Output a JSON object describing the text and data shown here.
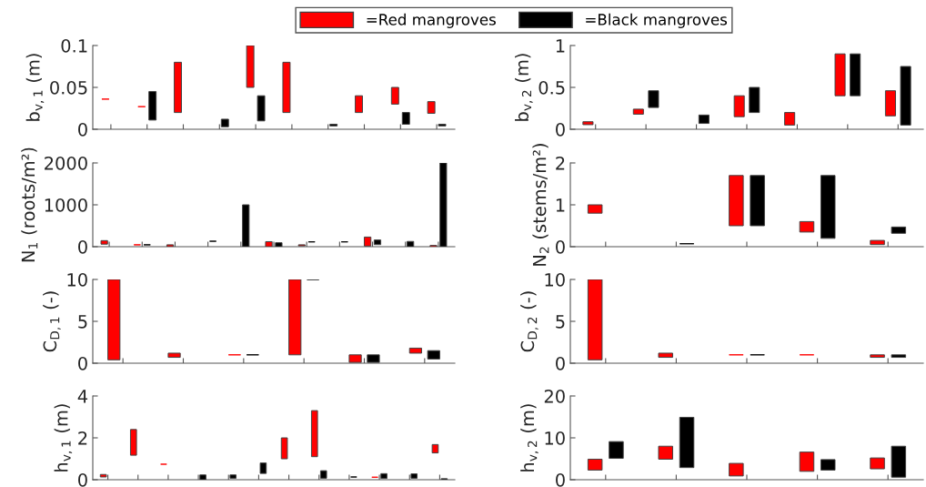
{
  "chart_data": [
    {
      "type": "bar",
      "ylabel": "b$_{v,1}$ (m)",
      "categories": [
        null,
        null,
        null,
        null,
        null,
        null,
        null,
        null,
        null,
        null
      ],
      "ylim": [
        0,
        0.1
      ],
      "yticks": [
        0,
        0.05,
        0.1
      ],
      "legend": "top",
      "series": [
        {
          "name": "=Red mangroves",
          "color": "#ff0000",
          "base": [
            0.036,
            0.027,
            0.02,
            null,
            0.05,
            0.02,
            null,
            0.02,
            0.03,
            0.019
          ],
          "values": [
            0,
            0,
            0.06,
            null,
            0.05,
            0.06,
            null,
            0.02,
            0.02,
            0.014
          ]
        },
        {
          "name": "=Black mangroves",
          "color": "#000000",
          "base": [
            null,
            0.011,
            null,
            0.003,
            0.01,
            null,
            0.004,
            null,
            0.006,
            0.004
          ],
          "values": [
            null,
            0.034,
            null,
            0.009,
            0.03,
            null,
            0.002,
            null,
            0.014,
            0.002
          ]
        }
      ]
    },
    {
      "type": "bar",
      "ylabel": "b$_{v,2}$ (m)",
      "categories": [
        null,
        null,
        null,
        null,
        null,
        null,
        null
      ],
      "ylim": [
        0,
        1
      ],
      "yticks": [
        0,
        0.5,
        1
      ],
      "series": [
        {
          "color": "#ff0000",
          "base": [
            0.055,
            0.18,
            null,
            0.15,
            0.05,
            0.4,
            0.16
          ],
          "values": [
            0.035,
            0.06,
            null,
            0.25,
            0.15,
            0.5,
            0.3
          ]
        },
        {
          "color": "#000000",
          "base": [
            null,
            0.26,
            0.07,
            0.2,
            null,
            0.4,
            0.05
          ],
          "values": [
            null,
            0.2,
            0.1,
            0.3,
            null,
            0.5,
            0.7
          ]
        }
      ]
    },
    {
      "type": "bar",
      "ylabel": "N$_{1}$ (roots/m²)",
      "categories": [
        null,
        null,
        null,
        null,
        null,
        null,
        null,
        null,
        null,
        null,
        null
      ],
      "ylim": [
        0,
        2000
      ],
      "yticks": [
        0,
        1000,
        2000
      ],
      "series": [
        {
          "color": "#ff0000",
          "base": [
            60,
            45,
            0,
            null,
            null,
            0,
            20,
            null,
            15,
            null,
            0
          ],
          "values": [
            85,
            0,
            45,
            null,
            null,
            120,
            25,
            null,
            215,
            null,
            30
          ]
        },
        {
          "color": "#000000",
          "base": [
            null,
            45,
            null,
            130,
            0,
            0,
            115,
            115,
            50,
            0,
            0
          ],
          "values": [
            null,
            0,
            null,
            0,
            1000,
            95,
            0,
            0,
            110,
            125,
            2000
          ]
        }
      ]
    },
    {
      "type": "bar",
      "ylabel": "N$_{2}$ (stems/m²)",
      "categories": [
        null,
        null,
        null,
        null,
        null
      ],
      "ylim": [
        0,
        2
      ],
      "yticks": [
        0,
        1,
        2
      ],
      "series": [
        {
          "color": "#ff0000",
          "base": [
            0.8,
            null,
            0.5,
            0.35,
            0.05
          ],
          "values": [
            0.2,
            null,
            1.2,
            0.25,
            0.1
          ]
        },
        {
          "color": "#000000",
          "base": [
            null,
            0.07,
            0.5,
            0.2,
            0.32
          ],
          "values": [
            null,
            0,
            1.2,
            1.5,
            0.15
          ]
        }
      ]
    },
    {
      "type": "bar",
      "ylabel": "C$_{D,1}$ (-)",
      "categories": [
        null,
        null,
        null,
        null,
        null,
        null
      ],
      "ylim": [
        0,
        10
      ],
      "yticks": [
        0,
        5,
        10
      ],
      "series": [
        {
          "color": "#ff0000",
          "base": [
            0.4,
            0.7,
            1,
            1,
            0.1,
            1.2
          ],
          "values": [
            9.6,
            0.5,
            0,
            9,
            0.9,
            0.6
          ]
        },
        {
          "color": "#000000",
          "base": [
            null,
            null,
            1,
            10,
            0.1,
            0.5
          ],
          "values": [
            null,
            null,
            0,
            0,
            0.9,
            1.0
          ]
        }
      ]
    },
    {
      "type": "bar",
      "ylabel": "C$_{D,2}$ (-)",
      "categories": [
        null,
        null,
        null,
        null,
        null
      ],
      "ylim": [
        0,
        10
      ],
      "yticks": [
        0,
        5,
        10
      ],
      "series": [
        {
          "color": "#ff0000",
          "base": [
            0.4,
            0.7,
            1,
            1,
            0.7
          ],
          "values": [
            9.6,
            0.5,
            0,
            0,
            0.3
          ]
        },
        {
          "color": "#000000",
          "base": [
            null,
            null,
            1,
            null,
            0.7
          ],
          "values": [
            null,
            null,
            0,
            null,
            0.3
          ]
        }
      ]
    },
    {
      "type": "bar",
      "ylabel": "h$_{v,1}$ (m)",
      "categories": [
        null,
        null,
        null,
        null,
        null,
        null,
        null,
        null,
        null,
        null,
        null,
        null
      ],
      "ylim": [
        0,
        4
      ],
      "yticks": [
        0,
        2,
        4
      ],
      "series": [
        {
          "color": "#ff0000",
          "base": [
            0.13,
            1.17,
            0.74,
            null,
            null,
            null,
            1.0,
            1.1,
            null,
            0.12,
            null,
            1.28
          ],
          "values": [
            0.12,
            1.23,
            0,
            null,
            null,
            null,
            1.0,
            2.2,
            null,
            0,
            null,
            0.4
          ]
        },
        {
          "color": "#000000",
          "base": [
            null,
            null,
            null,
            0,
            0.07,
            0.3,
            null,
            0.07,
            0.13,
            0.06,
            0.07,
            0
          ],
          "values": [
            null,
            null,
            null,
            0.23,
            0.16,
            0.5,
            null,
            0.36,
            0,
            0.23,
            0.21,
            0.05
          ]
        }
      ]
    },
    {
      "type": "bar",
      "ylabel": "h$_{v,2}$ (m)",
      "categories": [
        null,
        null,
        null,
        null,
        null
      ],
      "ylim": [
        0,
        20
      ],
      "yticks": [
        0,
        10,
        20
      ],
      "series": [
        {
          "color": "#ff0000",
          "base": [
            2.3,
            4.9,
            0.9,
            2,
            2.6
          ],
          "values": [
            2.6,
            3.1,
            3,
            4.6,
            2.6
          ]
        },
        {
          "color": "#000000",
          "base": [
            5.1,
            2.9,
            null,
            2.3,
            0.6
          ],
          "values": [
            4,
            12,
            null,
            2.5,
            7.4
          ]
        }
      ]
    }
  ]
}
